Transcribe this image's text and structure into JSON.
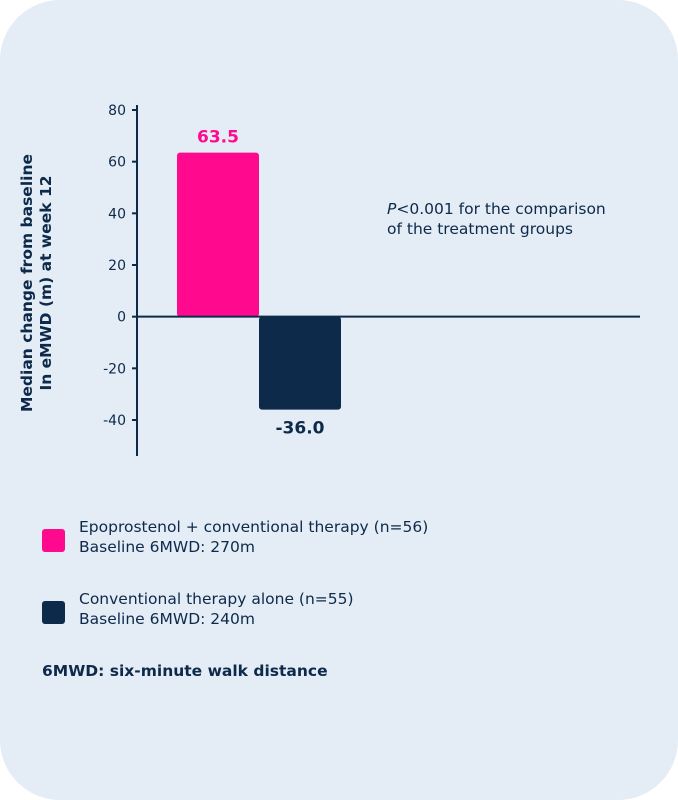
{
  "chart_data": {
    "type": "bar",
    "categories": [
      "Epoprostenol + conventional therapy",
      "Conventional therapy alone"
    ],
    "values": [
      63.5,
      -36.0
    ],
    "value_labels": [
      "63.5",
      "-36.0"
    ],
    "ylabel_lines": [
      "Median change from baseline",
      "In eMWD (m) at week 12"
    ],
    "ylim": [
      -50,
      80
    ],
    "yticks": [
      80,
      60,
      40,
      20,
      0,
      -20,
      -40
    ],
    "grid": false,
    "colors": [
      "#ff0a8f",
      "#0d2a4a"
    ]
  },
  "annotation": {
    "p_symbol": "P",
    "line1_rest": "<0.001 for the comparison",
    "line2": "of the treatment groups"
  },
  "legend": [
    {
      "line1": "Epoprostenol + conventional therapy (n=56)",
      "line2": "Baseline 6MWD: 270m",
      "color": "#ff0a8f"
    },
    {
      "line1": "Conventional therapy alone (n=55)",
      "line2": "Baseline 6MWD: 240m",
      "color": "#0d2a4a"
    }
  ],
  "footnote": "6MWD: six-minute walk distance"
}
